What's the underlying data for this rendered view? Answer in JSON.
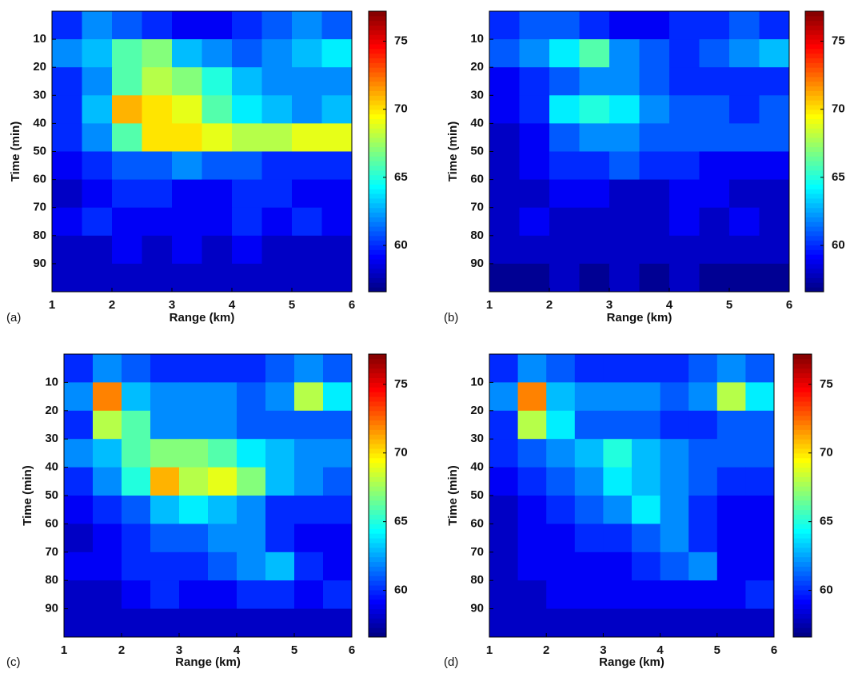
{
  "chart_data": [
    {
      "type": "heatmap",
      "panel_label": "(a)",
      "xlabel": "Range (km)",
      "ylabel": "Time (min)",
      "colormap": "jet",
      "y_reversed": true,
      "xlim": [
        1,
        6
      ],
      "ylim": [
        0,
        100
      ],
      "xticks": [
        1,
        2,
        3,
        4,
        5,
        6
      ],
      "yticks": [
        10,
        20,
        30,
        40,
        50,
        60,
        70,
        80,
        90
      ],
      "clim": [
        56.6,
        77.2
      ],
      "cticks": [
        60,
        65,
        70,
        75
      ],
      "xbins": [
        1,
        1.5,
        2,
        2.5,
        3,
        3.5,
        4,
        4.5,
        5,
        5.5,
        6
      ],
      "ybins": [
        0,
        10,
        20,
        30,
        40,
        50,
        60,
        70,
        80,
        90,
        100
      ],
      "z": [
        [
          60,
          62,
          61,
          60,
          59,
          59,
          60,
          61,
          62,
          61
        ],
        [
          62,
          63,
          66,
          67,
          63,
          62,
          61,
          62,
          63,
          64
        ],
        [
          60,
          62,
          66,
          68,
          67,
          65,
          63,
          62,
          62,
          62
        ],
        [
          60,
          63,
          71,
          70,
          69,
          66,
          64,
          63,
          62,
          63
        ],
        [
          60,
          62,
          66,
          70,
          70,
          69,
          68,
          68,
          69,
          69
        ],
        [
          59,
          60,
          61,
          61,
          62,
          61,
          61,
          60,
          60,
          60
        ],
        [
          58,
          59,
          60,
          60,
          59,
          59,
          60,
          60,
          59,
          59
        ],
        [
          59,
          60,
          59,
          59,
          59,
          59,
          60,
          59,
          60,
          59
        ],
        [
          58,
          58,
          59,
          58,
          59,
          58,
          59,
          58,
          58,
          58
        ],
        [
          58,
          58,
          58,
          58,
          58,
          58,
          58,
          58,
          58,
          58
        ]
      ]
    },
    {
      "type": "heatmap",
      "panel_label": "(b)",
      "xlabel": "Range (km)",
      "ylabel": "Time (min)",
      "colormap": "jet",
      "y_reversed": true,
      "xlim": [
        1,
        6
      ],
      "ylim": [
        0,
        100
      ],
      "xticks": [
        1,
        2,
        3,
        4,
        5,
        6
      ],
      "yticks": [
        10,
        20,
        30,
        40,
        50,
        60,
        70,
        80,
        90
      ],
      "clim": [
        56.6,
        77.2
      ],
      "cticks": [
        60,
        65,
        70,
        75
      ],
      "xbins": [
        1,
        1.5,
        2,
        2.5,
        3,
        3.5,
        4,
        4.5,
        5,
        5.5,
        6
      ],
      "ybins": [
        0,
        10,
        20,
        30,
        40,
        50,
        60,
        70,
        80,
        90,
        100
      ],
      "z": [
        [
          60,
          61,
          61,
          60,
          59,
          59,
          60,
          60,
          61,
          60
        ],
        [
          61,
          62,
          64,
          66,
          62,
          61,
          60,
          61,
          62,
          63
        ],
        [
          59,
          60,
          61,
          62,
          62,
          61,
          60,
          60,
          60,
          60
        ],
        [
          59,
          60,
          64,
          65,
          64,
          62,
          61,
          61,
          60,
          61
        ],
        [
          58,
          59,
          61,
          62,
          62,
          61,
          61,
          61,
          61,
          61
        ],
        [
          58,
          59,
          60,
          60,
          61,
          60,
          60,
          59,
          59,
          59
        ],
        [
          58,
          58,
          59,
          59,
          58,
          58,
          59,
          59,
          58,
          58
        ],
        [
          58,
          59,
          58,
          58,
          58,
          58,
          59,
          58,
          59,
          58
        ],
        [
          58,
          58,
          58,
          58,
          58,
          58,
          58,
          58,
          58,
          58
        ],
        [
          57,
          57,
          58,
          57,
          58,
          57,
          58,
          57,
          57,
          57
        ]
      ]
    },
    {
      "type": "heatmap",
      "panel_label": "(c)",
      "xlabel": "Range (km)",
      "ylabel": "Time (min)",
      "colormap": "jet",
      "y_reversed": true,
      "xlim": [
        1,
        6
      ],
      "ylim": [
        0,
        100
      ],
      "xticks": [
        1,
        2,
        3,
        4,
        5,
        6
      ],
      "yticks": [
        10,
        20,
        30,
        40,
        50,
        60,
        70,
        80,
        90
      ],
      "clim": [
        56.6,
        77.2
      ],
      "cticks": [
        60,
        65,
        70,
        75
      ],
      "xbins": [
        1,
        1.5,
        2,
        2.5,
        3,
        3.5,
        4,
        4.5,
        5,
        5.5,
        6
      ],
      "ybins": [
        0,
        10,
        20,
        30,
        40,
        50,
        60,
        70,
        80,
        90,
        100
      ],
      "z": [
        [
          60,
          62,
          61,
          60,
          60,
          60,
          60,
          61,
          62,
          61
        ],
        [
          62,
          72,
          63,
          62,
          62,
          62,
          61,
          62,
          68,
          64
        ],
        [
          60,
          68,
          66,
          62,
          62,
          62,
          61,
          61,
          61,
          61
        ],
        [
          62,
          63,
          66,
          67,
          67,
          66,
          64,
          63,
          62,
          62
        ],
        [
          60,
          62,
          65,
          71,
          68,
          69,
          67,
          63,
          62,
          61
        ],
        [
          59,
          60,
          61,
          63,
          64,
          63,
          62,
          60,
          60,
          60
        ],
        [
          58,
          59,
          60,
          61,
          61,
          62,
          62,
          60,
          59,
          59
        ],
        [
          59,
          59,
          60,
          60,
          60,
          61,
          62,
          63,
          60,
          59
        ],
        [
          58,
          58,
          59,
          60,
          59,
          59,
          60,
          60,
          59,
          60
        ],
        [
          58,
          58,
          58,
          58,
          58,
          58,
          58,
          58,
          58,
          58
        ]
      ]
    },
    {
      "type": "heatmap",
      "panel_label": "(d)",
      "xlabel": "Range (km)",
      "ylabel": "Time (min)",
      "colormap": "jet",
      "y_reversed": true,
      "xlim": [
        1,
        6
      ],
      "ylim": [
        0,
        100
      ],
      "xticks": [
        1,
        2,
        3,
        4,
        5,
        6
      ],
      "yticks": [
        10,
        20,
        30,
        40,
        50,
        60,
        70,
        80,
        90
      ],
      "clim": [
        56.6,
        77.2
      ],
      "cticks": [
        60,
        65,
        70,
        75
      ],
      "xbins": [
        1,
        1.5,
        2,
        2.5,
        3,
        3.5,
        4,
        4.5,
        5,
        5.5,
        6
      ],
      "ybins": [
        0,
        10,
        20,
        30,
        40,
        50,
        60,
        70,
        80,
        90,
        100
      ],
      "z": [
        [
          60,
          62,
          61,
          60,
          60,
          60,
          60,
          61,
          62,
          61
        ],
        [
          62,
          72,
          63,
          62,
          62,
          62,
          61,
          62,
          68,
          64
        ],
        [
          60,
          68,
          64,
          61,
          61,
          61,
          60,
          60,
          61,
          61
        ],
        [
          60,
          61,
          62,
          63,
          65,
          63,
          62,
          61,
          61,
          61
        ],
        [
          59,
          60,
          61,
          62,
          64,
          63,
          62,
          61,
          60,
          60
        ],
        [
          58,
          59,
          60,
          61,
          62,
          64,
          62,
          60,
          59,
          59
        ],
        [
          58,
          59,
          59,
          60,
          60,
          61,
          62,
          60,
          59,
          59
        ],
        [
          58,
          59,
          59,
          59,
          59,
          60,
          61,
          62,
          59,
          59
        ],
        [
          58,
          58,
          59,
          59,
          59,
          59,
          59,
          59,
          59,
          60
        ],
        [
          58,
          58,
          58,
          58,
          58,
          58,
          58,
          58,
          58,
          58
        ]
      ]
    }
  ]
}
